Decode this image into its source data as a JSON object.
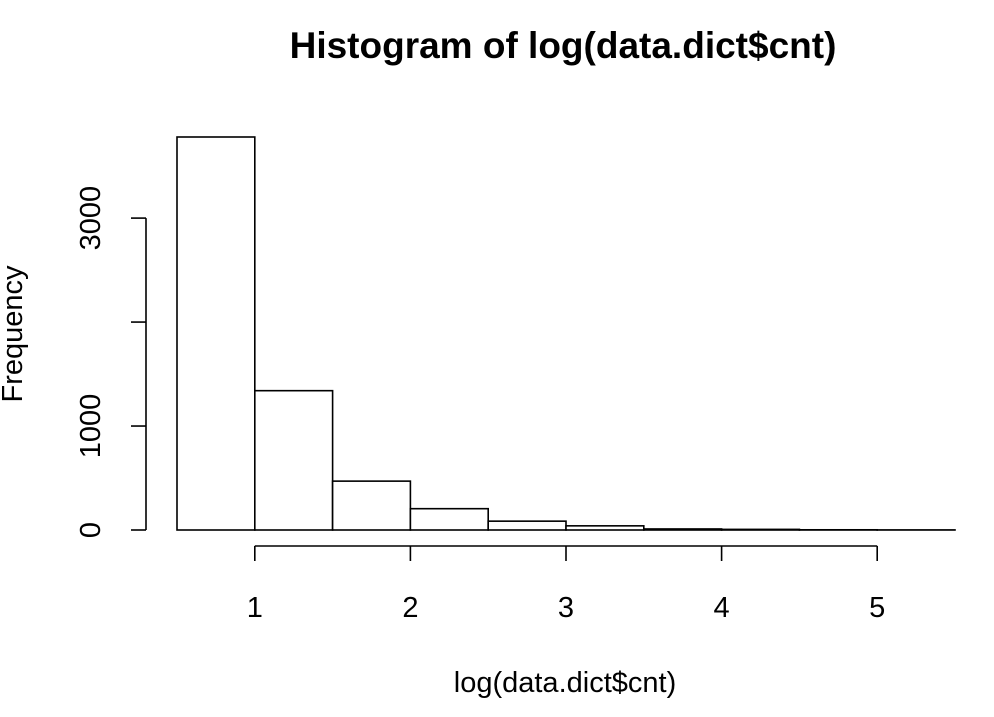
{
  "chart_data": {
    "type": "bar",
    "title": "Histogram of log(data.dict$cnt)",
    "xlabel": "log(data.dict$cnt)",
    "ylabel": "Frequency",
    "bins": [
      {
        "x0": 0.5,
        "x1": 1.0,
        "count": 3780
      },
      {
        "x0": 1.0,
        "x1": 1.5,
        "count": 1340
      },
      {
        "x0": 1.5,
        "x1": 2.0,
        "count": 470
      },
      {
        "x0": 2.0,
        "x1": 2.5,
        "count": 205
      },
      {
        "x0": 2.5,
        "x1": 3.0,
        "count": 85
      },
      {
        "x0": 3.0,
        "x1": 3.5,
        "count": 40
      },
      {
        "x0": 3.5,
        "x1": 4.0,
        "count": 10
      },
      {
        "x0": 4.0,
        "x1": 4.5,
        "count": 6
      },
      {
        "x0": 4.5,
        "x1": 5.0,
        "count": 2
      },
      {
        "x0": 5.0,
        "x1": 5.5,
        "count": 1
      }
    ],
    "x_ticks": [
      1,
      2,
      3,
      4,
      5
    ],
    "x_tick_labels": [
      "1",
      "2",
      "3",
      "4",
      "5"
    ],
    "y_ticks": [
      0,
      1000,
      2000,
      3000
    ],
    "y_tick_labels": [
      "0",
      "1000",
      "",
      "3000"
    ],
    "xlim": [
      0.5,
      5.5
    ],
    "ylim": [
      0,
      3780
    ],
    "grid": false,
    "legend": "none"
  }
}
